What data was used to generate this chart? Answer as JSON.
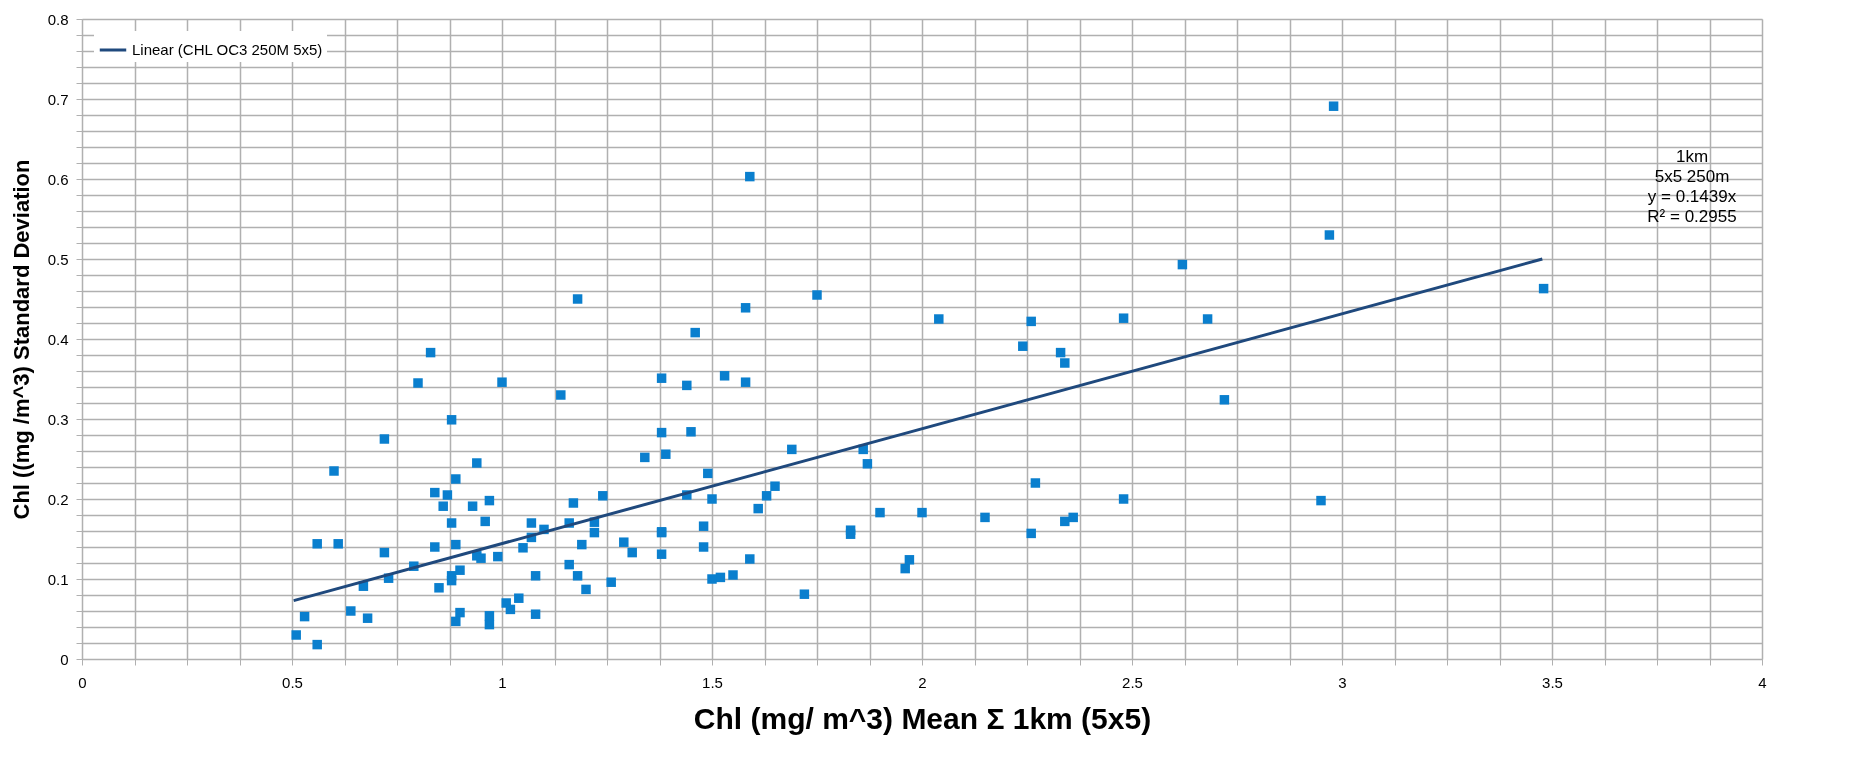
{
  "chart_data": {
    "type": "scatter",
    "xlabel": "Chl (mg/ m^3)     Mean   Σ 1km (5x5)",
    "ylabel": "Chl ((mg /m^3)    Standard Deviation",
    "annotations": [
      "1km",
      "5x5 250m",
      "y = 0.1439x",
      "R² = 0.2955"
    ],
    "xlim": [
      0,
      4
    ],
    "ylim": [
      0,
      0.8
    ],
    "xticks": [
      0,
      {
        "value": 0.125,
        "label": null
      },
      {
        "value": 0.25,
        "label": null
      },
      {
        "value": 0.375,
        "label": null
      },
      0.5,
      {
        "value": 0.625,
        "label": null
      },
      {
        "value": 0.75,
        "label": null
      },
      {
        "value": 0.875,
        "label": null
      },
      1,
      {
        "value": 1.125,
        "label": null
      },
      {
        "value": 1.25,
        "label": null
      },
      {
        "value": 1.375,
        "label": null
      },
      1.5,
      {
        "value": 1.625,
        "label": null
      },
      {
        "value": 1.75,
        "label": null
      },
      {
        "value": 1.875,
        "label": null
      },
      2,
      {
        "value": 2.125,
        "label": null
      },
      {
        "value": 2.25,
        "label": null
      },
      {
        "value": 2.375,
        "label": null
      },
      2.5,
      {
        "value": 2.625,
        "label": null
      },
      {
        "value": 2.75,
        "label": null
      },
      {
        "value": 2.875,
        "label": null
      },
      3,
      {
        "value": 3.125,
        "label": null
      },
      {
        "value": 3.25,
        "label": null
      },
      {
        "value": 3.375,
        "label": null
      },
      3.5,
      {
        "value": 3.625,
        "label": null
      },
      {
        "value": 3.75,
        "label": null
      },
      {
        "value": 3.875,
        "label": null
      },
      4
    ],
    "yticks": [
      0,
      {
        "value": 0.02,
        "label": null
      },
      {
        "value": 0.04,
        "label": null
      },
      {
        "value": 0.06,
        "label": null
      },
      {
        "value": 0.08,
        "label": null
      },
      0.1,
      {
        "value": 0.12,
        "label": null
      },
      {
        "value": 0.14,
        "label": null
      },
      {
        "value": 0.16,
        "label": null
      },
      {
        "value": 0.18,
        "label": null
      },
      0.2,
      {
        "value": 0.22,
        "label": null
      },
      {
        "value": 0.24,
        "label": null
      },
      {
        "value": 0.26,
        "label": null
      },
      {
        "value": 0.28,
        "label": null
      },
      0.3,
      {
        "value": 0.32,
        "label": null
      },
      {
        "value": 0.34,
        "label": null
      },
      {
        "value": 0.36,
        "label": null
      },
      {
        "value": 0.38,
        "label": null
      },
      0.4,
      {
        "value": 0.42,
        "label": null
      },
      {
        "value": 0.44,
        "label": null
      },
      {
        "value": 0.46,
        "label": null
      },
      {
        "value": 0.48,
        "label": null
      },
      0.5,
      {
        "value": 0.52,
        "label": null
      },
      {
        "value": 0.54,
        "label": null
      },
      {
        "value": 0.56,
        "label": null
      },
      {
        "value": 0.58,
        "label": null
      },
      0.6,
      {
        "value": 0.62,
        "label": null
      },
      {
        "value": 0.64,
        "label": null
      },
      {
        "value": 0.66,
        "label": null
      },
      {
        "value": 0.68,
        "label": null
      },
      0.7,
      {
        "value": 0.72,
        "label": null
      },
      {
        "value": 0.74,
        "label": null
      },
      {
        "value": 0.76,
        "label": null
      },
      {
        "value": 0.78,
        "label": null
      },
      0.8
    ],
    "grid": true,
    "legend": "top left",
    "marker": "square",
    "series": [
      {
        "color": "#0a7fce",
        "x": [
          0.8,
          1.0,
          0.83,
          1.14,
          0.88,
          0.72,
          0.6,
          0.94,
          0.89,
          0.84,
          0.87,
          0.86,
          0.93,
          0.97,
          0.88,
          0.96,
          0.56,
          0.61,
          0.72,
          0.84,
          0.89,
          0.94,
          0.95,
          0.99,
          0.79,
          0.73,
          0.67,
          0.85,
          0.88,
          0.88,
          0.9,
          1.05,
          1.07,
          1.07,
          1.1,
          1.08,
          1.01,
          1.04,
          1.02,
          1.08,
          0.9,
          0.89,
          0.97,
          0.97,
          0.64,
          0.53,
          0.68,
          0.51,
          0.56,
          1.18,
          1.59,
          1.58,
          1.75,
          1.46,
          2.04,
          2.26,
          2.24,
          2.33,
          2.34,
          2.48,
          1.38,
          1.44,
          1.53,
          1.58,
          1.38,
          1.45,
          1.39,
          1.34,
          1.69,
          1.86,
          1.87,
          1.49,
          1.44,
          1.5,
          1.24,
          1.17,
          1.65,
          1.63,
          1.61,
          1.9,
          2.0,
          2.15,
          2.27,
          2.48,
          2.34,
          2.36,
          2.26,
          1.83,
          1.83,
          1.96,
          1.97,
          1.72,
          1.59,
          1.55,
          1.52,
          1.5,
          1.48,
          1.48,
          1.38,
          1.38,
          1.38,
          1.16,
          1.22,
          1.22,
          1.19,
          1.29,
          1.31,
          1.16,
          1.18,
          1.2,
          1.26,
          2.98,
          2.97,
          2.62,
          2.68,
          3.48,
          2.72,
          2.95
        ],
        "values": [
          0.345,
          0.346,
          0.383,
          0.33,
          0.299,
          0.275,
          0.235,
          0.245,
          0.225,
          0.208,
          0.205,
          0.191,
          0.191,
          0.198,
          0.17,
          0.172,
          0.144,
          0.144,
          0.133,
          0.14,
          0.143,
          0.129,
          0.126,
          0.128,
          0.116,
          0.101,
          0.091,
          0.089,
          0.104,
          0.098,
          0.111,
          0.139,
          0.17,
          0.152,
          0.162,
          0.104,
          0.07,
          0.076,
          0.062,
          0.056,
          0.058,
          0.047,
          0.054,
          0.043,
          0.06,
          0.053,
          0.051,
          0.03,
          0.018,
          0.45,
          0.603,
          0.439,
          0.455,
          0.408,
          0.425,
          0.422,
          0.391,
          0.383,
          0.37,
          0.426,
          0.351,
          0.342,
          0.354,
          0.346,
          0.283,
          0.284,
          0.256,
          0.252,
          0.262,
          0.262,
          0.244,
          0.232,
          0.205,
          0.2,
          0.204,
          0.195,
          0.216,
          0.204,
          0.188,
          0.183,
          0.183,
          0.177,
          0.22,
          0.2,
          0.172,
          0.177,
          0.157,
          0.161,
          0.156,
          0.113,
          0.124,
          0.081,
          0.125,
          0.105,
          0.102,
          0.1,
          0.166,
          0.14,
          0.158,
          0.159,
          0.131,
          0.17,
          0.171,
          0.158,
          0.143,
          0.146,
          0.133,
          0.118,
          0.104,
          0.087,
          0.096,
          0.691,
          0.53,
          0.493,
          0.425,
          0.463,
          0.324,
          0.198
        ]
      },
      {
        "type": "line",
        "name": "Linear (CHL OC3 250M 5x5)",
        "color": "#1f497d",
        "line_style": "solid",
        "marker": "none",
        "x": [
          0.504,
          3.477
        ],
        "values": [
          0.073,
          0.5
        ]
      }
    ]
  }
}
